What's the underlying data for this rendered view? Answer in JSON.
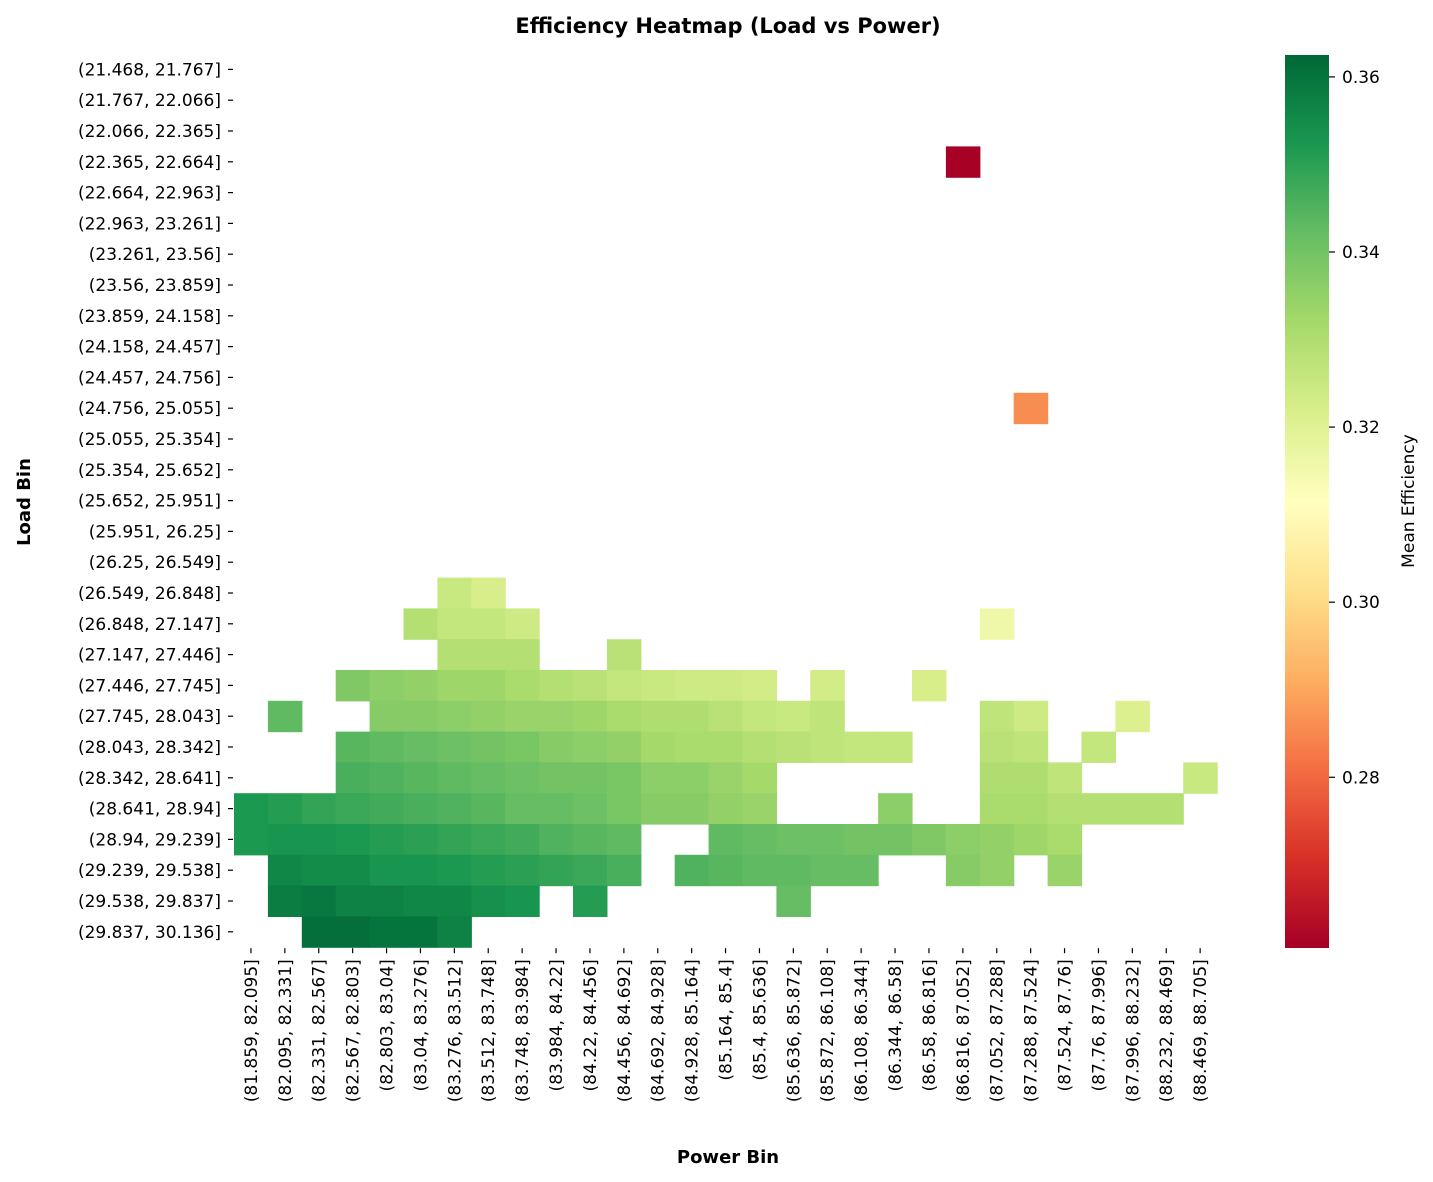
{
  "chart_data": {
    "type": "heatmap",
    "title": "Efficiency Heatmap (Load vs Power)",
    "xlabel": "Power Bin",
    "ylabel": "Load Bin",
    "colorbar_label": "Mean Efficiency",
    "colormap": "RdYlGn",
    "color_range": [
      0.2605,
      0.3625
    ],
    "colorbar_ticks": [
      0.28,
      0.3,
      0.32,
      0.34,
      0.36
    ],
    "colorbar_tick_labels": [
      "0.28",
      "0.30",
      "0.32",
      "0.34",
      "0.36"
    ],
    "x_categories": [
      "(81.859, 82.095]",
      "(82.095, 82.331]",
      "(82.331, 82.567]",
      "(82.567, 82.803]",
      "(82.803, 83.04]",
      "(83.04, 83.276]",
      "(83.276, 83.512]",
      "(83.512, 83.748]",
      "(83.748, 83.984]",
      "(83.984, 84.22]",
      "(84.22, 84.456]",
      "(84.456, 84.692]",
      "(84.692, 84.928]",
      "(84.928, 85.164]",
      "(85.164, 85.4]",
      "(85.4, 85.636]",
      "(85.636, 85.872]",
      "(85.872, 86.108]",
      "(86.108, 86.344]",
      "(86.344, 86.58]",
      "(86.58, 86.816]",
      "(86.816, 87.052]",
      "(87.052, 87.288]",
      "(87.288, 87.524]",
      "(87.524, 87.76]",
      "(87.76, 87.996]",
      "(87.996, 88.232]",
      "(88.232, 88.469]",
      "(88.469, 88.705]"
    ],
    "y_categories": [
      "(21.468, 21.767]",
      "(21.767, 22.066]",
      "(22.066, 22.365]",
      "(22.365, 22.664]",
      "(22.664, 22.963]",
      "(22.963, 23.261]",
      "(23.261, 23.56]",
      "(23.56, 23.859]",
      "(23.859, 24.158]",
      "(24.158, 24.457]",
      "(24.457, 24.756]",
      "(24.756, 25.055]",
      "(25.055, 25.354]",
      "(25.354, 25.652]",
      "(25.652, 25.951]",
      "(25.951, 26.25]",
      "(26.25, 26.549]",
      "(26.549, 26.848]",
      "(26.848, 27.147]",
      "(27.147, 27.446]",
      "(27.446, 27.745]",
      "(27.745, 28.043]",
      "(28.043, 28.342]",
      "(28.342, 28.641]",
      "(28.641, 28.94]",
      "(28.94, 29.239]",
      "(29.239, 29.538]",
      "(29.538, 29.837]",
      "(29.837, 30.136]"
    ],
    "values": [
      [
        null,
        null,
        null,
        null,
        null,
        null,
        null,
        null,
        null,
        null,
        null,
        null,
        null,
        null,
        null,
        null,
        null,
        null,
        null,
        null,
        null,
        null,
        null,
        null,
        null,
        null,
        null,
        null,
        null
      ],
      [
        null,
        null,
        null,
        null,
        null,
        null,
        null,
        null,
        null,
        null,
        null,
        null,
        null,
        null,
        null,
        null,
        null,
        null,
        null,
        null,
        null,
        null,
        null,
        null,
        null,
        null,
        null,
        null,
        null
      ],
      [
        null,
        null,
        null,
        null,
        null,
        null,
        null,
        null,
        null,
        null,
        null,
        null,
        null,
        null,
        null,
        null,
        null,
        null,
        null,
        null,
        null,
        null,
        null,
        null,
        null,
        null,
        null,
        null,
        null
      ],
      [
        null,
        null,
        null,
        null,
        null,
        null,
        null,
        null,
        null,
        null,
        null,
        null,
        null,
        null,
        null,
        null,
        null,
        null,
        null,
        null,
        null,
        0.261,
        null,
        null,
        null,
        null,
        null,
        null,
        null
      ],
      [
        null,
        null,
        null,
        null,
        null,
        null,
        null,
        null,
        null,
        null,
        null,
        null,
        null,
        null,
        null,
        null,
        null,
        null,
        null,
        null,
        null,
        null,
        null,
        null,
        null,
        null,
        null,
        null,
        null
      ],
      [
        null,
        null,
        null,
        null,
        null,
        null,
        null,
        null,
        null,
        null,
        null,
        null,
        null,
        null,
        null,
        null,
        null,
        null,
        null,
        null,
        null,
        null,
        null,
        null,
        null,
        null,
        null,
        null,
        null
      ],
      [
        null,
        null,
        null,
        null,
        null,
        null,
        null,
        null,
        null,
        null,
        null,
        null,
        null,
        null,
        null,
        null,
        null,
        null,
        null,
        null,
        null,
        null,
        null,
        null,
        null,
        null,
        null,
        null,
        null
      ],
      [
        null,
        null,
        null,
        null,
        null,
        null,
        null,
        null,
        null,
        null,
        null,
        null,
        null,
        null,
        null,
        null,
        null,
        null,
        null,
        null,
        null,
        null,
        null,
        null,
        null,
        null,
        null,
        null,
        null
      ],
      [
        null,
        null,
        null,
        null,
        null,
        null,
        null,
        null,
        null,
        null,
        null,
        null,
        null,
        null,
        null,
        null,
        null,
        null,
        null,
        null,
        null,
        null,
        null,
        null,
        null,
        null,
        null,
        null,
        null
      ],
      [
        null,
        null,
        null,
        null,
        null,
        null,
        null,
        null,
        null,
        null,
        null,
        null,
        null,
        null,
        null,
        null,
        null,
        null,
        null,
        null,
        null,
        null,
        null,
        null,
        null,
        null,
        null,
        null,
        null
      ],
      [
        null,
        null,
        null,
        null,
        null,
        null,
        null,
        null,
        null,
        null,
        null,
        null,
        null,
        null,
        null,
        null,
        null,
        null,
        null,
        null,
        null,
        null,
        null,
        null,
        null,
        null,
        null,
        null,
        null
      ],
      [
        null,
        null,
        null,
        null,
        null,
        null,
        null,
        null,
        null,
        null,
        null,
        null,
        null,
        null,
        null,
        null,
        null,
        null,
        null,
        null,
        null,
        null,
        null,
        0.286,
        null,
        null,
        null,
        null,
        null
      ],
      [
        null,
        null,
        null,
        null,
        null,
        null,
        null,
        null,
        null,
        null,
        null,
        null,
        null,
        null,
        null,
        null,
        null,
        null,
        null,
        null,
        null,
        null,
        null,
        null,
        null,
        null,
        null,
        null,
        null
      ],
      [
        null,
        null,
        null,
        null,
        null,
        null,
        null,
        null,
        null,
        null,
        null,
        null,
        null,
        null,
        null,
        null,
        null,
        null,
        null,
        null,
        null,
        null,
        null,
        null,
        null,
        null,
        null,
        null,
        null
      ],
      [
        null,
        null,
        null,
        null,
        null,
        null,
        null,
        null,
        null,
        null,
        null,
        null,
        null,
        null,
        null,
        null,
        null,
        null,
        null,
        null,
        null,
        null,
        null,
        null,
        null,
        null,
        null,
        null,
        null
      ],
      [
        null,
        null,
        null,
        null,
        null,
        null,
        null,
        null,
        null,
        null,
        null,
        null,
        null,
        null,
        null,
        null,
        null,
        null,
        null,
        null,
        null,
        null,
        null,
        null,
        null,
        null,
        null,
        null,
        null
      ],
      [
        null,
        null,
        null,
        null,
        null,
        null,
        null,
        null,
        null,
        null,
        null,
        null,
        null,
        null,
        null,
        null,
        null,
        null,
        null,
        null,
        null,
        null,
        null,
        null,
        null,
        null,
        null,
        null,
        null
      ],
      [
        null,
        null,
        null,
        null,
        null,
        null,
        0.325,
        0.322,
        null,
        null,
        null,
        null,
        null,
        null,
        null,
        null,
        null,
        null,
        null,
        null,
        null,
        null,
        null,
        null,
        null,
        null,
        null,
        null,
        null
      ],
      [
        null,
        null,
        null,
        null,
        null,
        0.329,
        0.326,
        0.326,
        0.324,
        null,
        null,
        null,
        null,
        null,
        null,
        null,
        null,
        null,
        null,
        null,
        null,
        null,
        0.316,
        null,
        null,
        null,
        null,
        null,
        null
      ],
      [
        null,
        null,
        null,
        null,
        null,
        null,
        0.329,
        0.329,
        0.329,
        null,
        null,
        0.328,
        null,
        null,
        null,
        null,
        null,
        null,
        null,
        null,
        null,
        null,
        null,
        null,
        null,
        null,
        null,
        null,
        null
      ],
      [
        null,
        null,
        null,
        0.338,
        0.336,
        0.335,
        0.333,
        0.333,
        0.331,
        0.329,
        0.328,
        0.326,
        0.325,
        0.324,
        0.324,
        0.323,
        null,
        0.323,
        null,
        null,
        0.322,
        null,
        null,
        null,
        null,
        null,
        null,
        null,
        null
      ],
      [
        null,
        0.343,
        null,
        null,
        0.337,
        0.337,
        0.336,
        0.335,
        0.334,
        0.334,
        0.333,
        0.331,
        0.33,
        0.33,
        0.328,
        0.326,
        0.325,
        0.327,
        null,
        null,
        null,
        null,
        0.327,
        0.324,
        null,
        null,
        0.321,
        null,
        null
      ],
      [
        null,
        null,
        null,
        0.344,
        0.343,
        0.342,
        0.341,
        0.34,
        0.339,
        0.337,
        0.336,
        0.335,
        0.332,
        0.331,
        0.331,
        0.329,
        0.328,
        0.327,
        0.326,
        0.326,
        null,
        null,
        0.328,
        0.327,
        null,
        0.326,
        null,
        null,
        null
      ],
      [
        null,
        null,
        null,
        0.346,
        0.345,
        0.344,
        0.343,
        0.342,
        0.341,
        0.34,
        0.34,
        0.339,
        0.336,
        0.336,
        0.334,
        0.332,
        null,
        null,
        null,
        null,
        null,
        null,
        0.33,
        0.33,
        0.327,
        null,
        null,
        null,
        0.325
      ],
      [
        0.352,
        0.351,
        0.349,
        0.348,
        0.347,
        0.346,
        0.345,
        0.344,
        0.342,
        0.342,
        0.341,
        0.339,
        0.337,
        0.337,
        0.335,
        0.334,
        null,
        null,
        null,
        0.336,
        null,
        null,
        0.331,
        0.331,
        0.329,
        0.329,
        0.329,
        0.329,
        null
      ],
      [
        0.352,
        0.353,
        0.353,
        0.352,
        0.351,
        0.35,
        0.349,
        0.348,
        0.347,
        0.345,
        0.344,
        0.343,
        null,
        null,
        0.343,
        0.342,
        0.341,
        0.341,
        0.34,
        0.34,
        0.338,
        0.336,
        0.335,
        0.333,
        0.331,
        null,
        null,
        null,
        null
      ],
      [
        null,
        0.356,
        0.355,
        0.355,
        0.353,
        0.353,
        0.352,
        0.351,
        0.35,
        0.349,
        0.348,
        0.346,
        null,
        0.345,
        0.344,
        0.343,
        0.343,
        0.342,
        0.342,
        null,
        null,
        0.337,
        0.335,
        null,
        0.334,
        null,
        null,
        null,
        null
      ],
      [
        null,
        0.358,
        0.359,
        0.357,
        0.357,
        0.356,
        0.356,
        0.354,
        0.353,
        null,
        0.351,
        null,
        null,
        null,
        null,
        null,
        0.342,
        null,
        null,
        null,
        null,
        null,
        null,
        null,
        null,
        null,
        null,
        null,
        null
      ],
      [
        null,
        null,
        0.361,
        0.361,
        0.36,
        0.36,
        0.357,
        null,
        null,
        null,
        null,
        null,
        null,
        null,
        null,
        null,
        null,
        null,
        null,
        null,
        null,
        null,
        null,
        null,
        null,
        null,
        null,
        null,
        null
      ]
    ]
  }
}
